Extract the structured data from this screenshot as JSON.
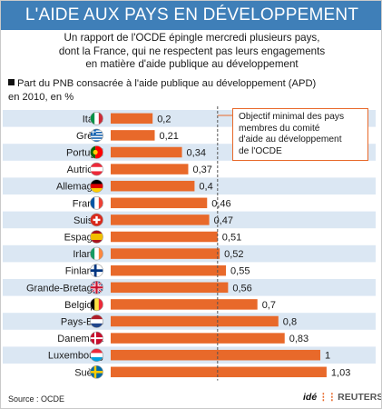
{
  "header": {
    "title": "L'AIDE AUX PAYS EN DÉVELOPPEMENT",
    "subtitle_lines": [
      "Un rapport de l'OCDE épingle mercredi plusieurs pays,",
      "dont la France, qui ne respectent pas leurs engagements",
      "en matière d'aide publique au développement"
    ]
  },
  "chart_heading_lines": [
    "Part du PNB consacrée à l'aide publique au développement (APD)",
    "en 2010, en %"
  ],
  "callout_lines": [
    "Objectif minimal des pays",
    "membres du comité",
    "d'aide au développement",
    "de l'OCDE"
  ],
  "footer": {
    "source": "Source : OCDE",
    "logo_ide": "idé",
    "logo_reuters": "REUTERS"
  },
  "colors": {
    "title_bar": "#3f7fb8",
    "bar": "#e8692a",
    "row_stripe": "#dbe7f3",
    "target_line": "#555555"
  },
  "chart_data": {
    "type": "bar",
    "orientation": "horizontal",
    "categories": [
      "Italie",
      "Grèce",
      "Portugal",
      "Autriche",
      "Allemagne",
      "France",
      "Suisse",
      "Espagne",
      "Irlande",
      "Finlande",
      "Grande-Bretagne",
      "Belgique",
      "Pays-Bas",
      "Danemark",
      "Luxembourg",
      "Suède"
    ],
    "values": [
      0.2,
      0.21,
      0.34,
      0.37,
      0.4,
      0.46,
      0.47,
      0.51,
      0.52,
      0.55,
      0.56,
      0.7,
      0.8,
      0.83,
      1,
      1.03
    ],
    "value_labels": [
      "0,2",
      "0,21",
      "0,34",
      "0,37",
      "0,4",
      "0,46",
      "0,47",
      "0,51",
      "0,52",
      "0,55",
      "0,56",
      "0,7",
      "0,8",
      "0,83",
      "1",
      "1,03"
    ],
    "flag_icons": [
      "italy-flag-icon",
      "greece-flag-icon",
      "portugal-flag-icon",
      "austria-flag-icon",
      "germany-flag-icon",
      "france-flag-icon",
      "switzerland-flag-icon",
      "spain-flag-icon",
      "ireland-flag-icon",
      "finland-flag-icon",
      "uk-flag-icon",
      "belgium-flag-icon",
      "netherlands-flag-icon",
      "denmark-flag-icon",
      "luxembourg-flag-icon",
      "sweden-flag-icon"
    ],
    "target_value": 0.51,
    "xlim": [
      0,
      1.1
    ],
    "grid": false,
    "legend": "none"
  }
}
